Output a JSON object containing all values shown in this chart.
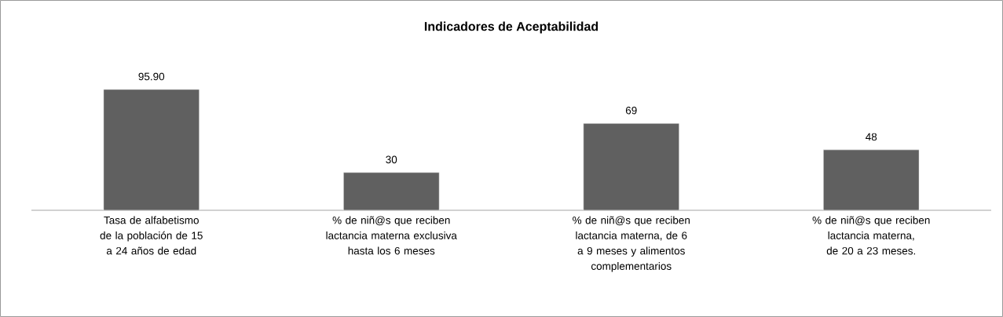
{
  "chart_data": {
    "type": "bar",
    "title": "Indicadores de Aceptabilidad",
    "categories": [
      "Tasa de alfabetismo de la población de 15 a 24 años de edad",
      "% de niñ@s que reciben lactancia materna exclusiva hasta los 6 meses",
      "% de niñ@s que reciben lactancia materna, de 6 a 9 meses y alimentos complementarios",
      "% de niñ@s que reciben lactancia materna, de 20 a 23 meses."
    ],
    "values": [
      95.9,
      30,
      69,
      48
    ],
    "value_labels": [
      "95.90",
      "30",
      "69",
      "48"
    ],
    "color": "#606060"
  }
}
